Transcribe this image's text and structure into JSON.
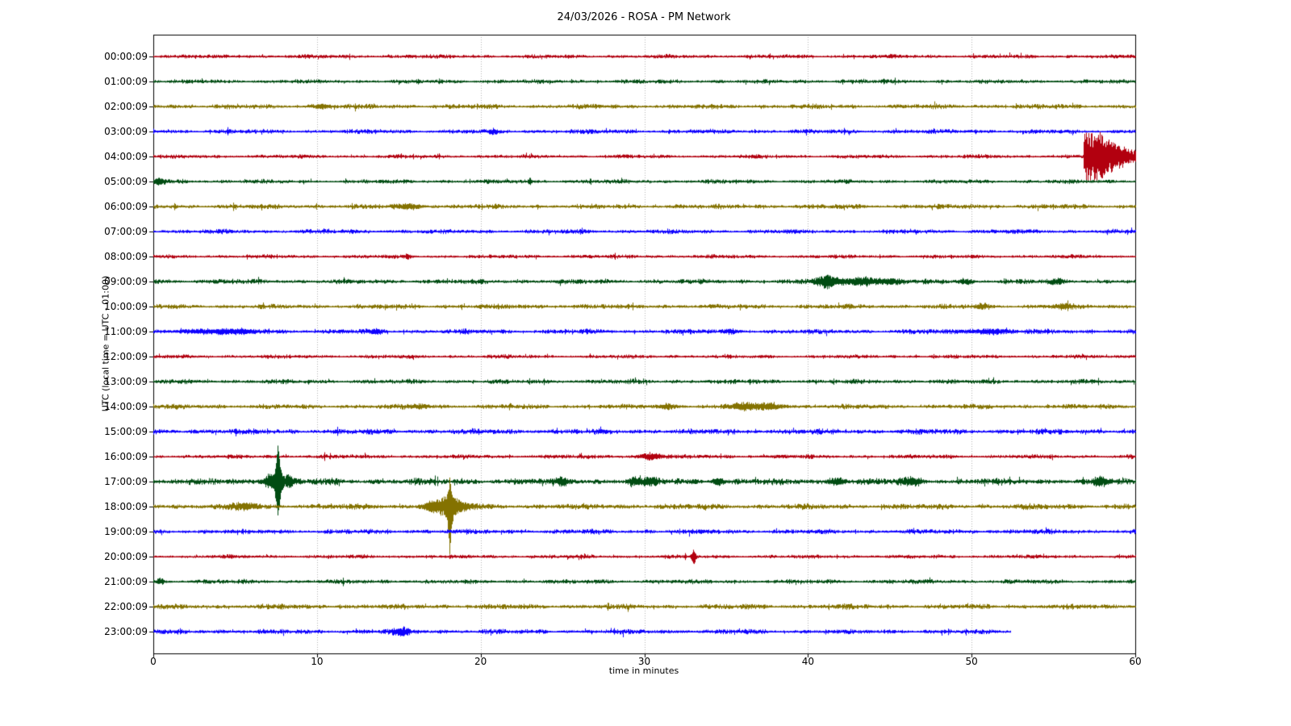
{
  "chart_data": {
    "type": "line",
    "subtype": "seismogram-helicorder-dayplot",
    "title": "24/03/2026 - ROSA - PM Network",
    "xlabel": "time in minutes",
    "ylabel": "UTC (local time = UTC - 01:00)",
    "xlim": [
      0,
      60
    ],
    "x_ticks": [
      0,
      10,
      20,
      30,
      40,
      50,
      60
    ],
    "grid": "vertical-dotted-at-10-min",
    "grid_color": "#b3b3b3",
    "axis_color": "#000000",
    "background_color": "#ffffff",
    "legend": "none",
    "row_interval_minutes": 60,
    "color_cycle": [
      "#B2000F",
      "#004C12",
      "#847200",
      "#0E01FF"
    ],
    "rows": [
      {
        "label": "00:00:09",
        "color": "#B2000F",
        "noise": 1.25,
        "end": 60,
        "events": []
      },
      {
        "label": "01:00:09",
        "color": "#004C12",
        "noise": 1.3,
        "end": 60,
        "events": []
      },
      {
        "label": "02:00:09",
        "color": "#847200",
        "noise": 1.5,
        "end": 60,
        "events": [
          {
            "type": "burst",
            "t": 10.3,
            "amp": 1.8,
            "sigma": 0.4
          }
        ]
      },
      {
        "label": "03:00:09",
        "color": "#0E01FF",
        "noise": 1.4,
        "end": 60,
        "events": [
          {
            "type": "burst",
            "t": 20.8,
            "amp": 1.5,
            "sigma": 0.2
          }
        ]
      },
      {
        "label": "04:00:09",
        "color": "#B2000F",
        "noise": 1.2,
        "end": 60,
        "events": [
          {
            "type": "decay",
            "t": 56.8,
            "amp": 27,
            "decay": 1.2
          },
          {
            "type": "burst",
            "t": 57.9,
            "amp": 9,
            "sigma": 0.3
          },
          {
            "type": "burst",
            "t": 58.8,
            "amp": 5,
            "sigma": 0.3
          }
        ]
      },
      {
        "label": "05:00:09",
        "color": "#004C12",
        "noise": 1.3,
        "end": 60,
        "events": [
          {
            "type": "burst",
            "t": 0.3,
            "amp": 3,
            "sigma": 0.25
          },
          {
            "type": "spike",
            "t": 23.0,
            "amp_up": 4,
            "amp_down": 4,
            "halfwidth": 0.12
          }
        ]
      },
      {
        "label": "06:00:09",
        "color": "#847200",
        "noise": 1.5,
        "end": 60,
        "events": [
          {
            "type": "burst",
            "t": 15.6,
            "amp": 2.0,
            "sigma": 0.6
          }
        ]
      },
      {
        "label": "07:00:09",
        "color": "#0E01FF",
        "noise": 1.4,
        "end": 60,
        "events": []
      },
      {
        "label": "08:00:09",
        "color": "#B2000F",
        "noise": 1.2,
        "end": 60,
        "events": [
          {
            "type": "spike",
            "t": 15.5,
            "amp_up": 3,
            "amp_down": 3,
            "halfwidth": 0.2
          }
        ]
      },
      {
        "label": "09:00:09",
        "color": "#004C12",
        "noise": 1.5,
        "end": 60,
        "events": [
          {
            "type": "burst",
            "t": 41.1,
            "amp": 5.5,
            "sigma": 0.5
          },
          {
            "type": "burst",
            "t": 43.3,
            "amp": 4.0,
            "sigma": 0.8
          },
          {
            "type": "burst",
            "t": 45.2,
            "amp": 2.2,
            "sigma": 0.4
          },
          {
            "type": "burst",
            "t": 49.6,
            "amp": 1.8,
            "sigma": 0.3
          },
          {
            "type": "burst",
            "t": 55.2,
            "amp": 1.8,
            "sigma": 0.3
          }
        ]
      },
      {
        "label": "10:00:09",
        "color": "#847200",
        "noise": 1.5,
        "end": 60,
        "events": [
          {
            "type": "burst",
            "t": 50.6,
            "amp": 2.0,
            "sigma": 0.3
          },
          {
            "type": "burst",
            "t": 55.5,
            "amp": 2.0,
            "sigma": 0.4
          }
        ]
      },
      {
        "label": "11:00:09",
        "color": "#0E01FF",
        "noise": 1.5,
        "end": 60,
        "events": [
          {
            "type": "burst",
            "t": 4.0,
            "amp": 1.8,
            "sigma": 1.8
          },
          {
            "type": "burst",
            "t": 13.6,
            "amp": 2.2,
            "sigma": 0.25
          },
          {
            "type": "burst",
            "t": 35.3,
            "amp": 1.5,
            "sigma": 0.3
          },
          {
            "type": "burst",
            "t": 50.9,
            "amp": 2.0,
            "sigma": 1.0
          }
        ]
      },
      {
        "label": "12:00:09",
        "color": "#B2000F",
        "noise": 1.2,
        "end": 60,
        "events": []
      },
      {
        "label": "13:00:09",
        "color": "#004C12",
        "noise": 1.45,
        "end": 60,
        "events": []
      },
      {
        "label": "14:00:09",
        "color": "#847200",
        "noise": 1.5,
        "end": 60,
        "events": [
          {
            "type": "burst",
            "t": 16.3,
            "amp": 1.8,
            "sigma": 0.4
          },
          {
            "type": "burst",
            "t": 31.5,
            "amp": 2.0,
            "sigma": 0.4
          },
          {
            "type": "burst",
            "t": 35.8,
            "amp": 2.4,
            "sigma": 0.5
          },
          {
            "type": "burst",
            "t": 37.5,
            "amp": 2.6,
            "sigma": 0.7
          }
        ]
      },
      {
        "label": "15:00:09",
        "color": "#0E01FF",
        "noise": 1.7,
        "end": 60,
        "events": []
      },
      {
        "label": "16:00:09",
        "color": "#B2000F",
        "noise": 1.3,
        "end": 60,
        "events": [
          {
            "type": "burst",
            "t": 30.4,
            "amp": 3.0,
            "sigma": 0.5
          }
        ]
      },
      {
        "label": "17:00:09",
        "color": "#004C12",
        "noise": 2.0,
        "end": 60,
        "events": [
          {
            "type": "burst",
            "t": 7.0,
            "amp": 4.0,
            "sigma": 0.15
          },
          {
            "type": "spike",
            "t": 7.6,
            "amp_up": 36,
            "amp_down": 44,
            "halfwidth": 0.25
          },
          {
            "type": "burst",
            "t": 7.6,
            "amp": 5.0,
            "sigma": 0.6
          },
          {
            "type": "burst",
            "t": 8.3,
            "amp": 3.0,
            "sigma": 0.15
          },
          {
            "type": "burst",
            "t": 25.0,
            "amp": 2.5,
            "sigma": 0.3
          },
          {
            "type": "burst",
            "t": 29.3,
            "amp": 3.5,
            "sigma": 0.25
          },
          {
            "type": "burst",
            "t": 30.3,
            "amp": 3.0,
            "sigma": 0.3
          },
          {
            "type": "burst",
            "t": 34.5,
            "amp": 2.8,
            "sigma": 0.3
          },
          {
            "type": "burst",
            "t": 41.8,
            "amp": 2.8,
            "sigma": 0.4
          },
          {
            "type": "burst",
            "t": 46.3,
            "amp": 3.0,
            "sigma": 0.4
          },
          {
            "type": "burst",
            "t": 57.9,
            "amp": 3.0,
            "sigma": 0.35
          }
        ]
      },
      {
        "label": "18:00:09",
        "color": "#847200",
        "noise": 1.8,
        "end": 60,
        "events": [
          {
            "type": "burst",
            "t": 5.5,
            "amp": 2.6,
            "sigma": 0.5
          },
          {
            "type": "burst",
            "t": 16.9,
            "amp": 3.0,
            "sigma": 0.3
          },
          {
            "type": "spike",
            "t": 18.1,
            "amp_up": 24,
            "amp_down": 58,
            "halfwidth": 0.2
          },
          {
            "type": "burst",
            "t": 18.1,
            "amp": 7.0,
            "sigma": 0.8
          }
        ]
      },
      {
        "label": "19:00:09",
        "color": "#0E01FF",
        "noise": 1.5,
        "end": 60,
        "events": []
      },
      {
        "label": "20:00:09",
        "color": "#B2000F",
        "noise": 1.2,
        "end": 60,
        "events": [
          {
            "type": "spike",
            "t": 33.0,
            "amp_up": 7,
            "amp_down": 10,
            "halfwidth": 0.18
          }
        ]
      },
      {
        "label": "21:00:09",
        "color": "#004C12",
        "noise": 1.4,
        "end": 60,
        "events": [
          {
            "type": "burst",
            "t": 0.4,
            "amp": 2.0,
            "sigma": 0.2
          }
        ]
      },
      {
        "label": "22:00:09",
        "color": "#847200",
        "noise": 1.6,
        "end": 60,
        "events": []
      },
      {
        "label": "23:00:09",
        "color": "#0E01FF",
        "noise": 1.5,
        "end": 52.4,
        "events": [
          {
            "type": "burst",
            "t": 15.1,
            "amp": 3.0,
            "sigma": 0.4
          }
        ]
      }
    ]
  }
}
